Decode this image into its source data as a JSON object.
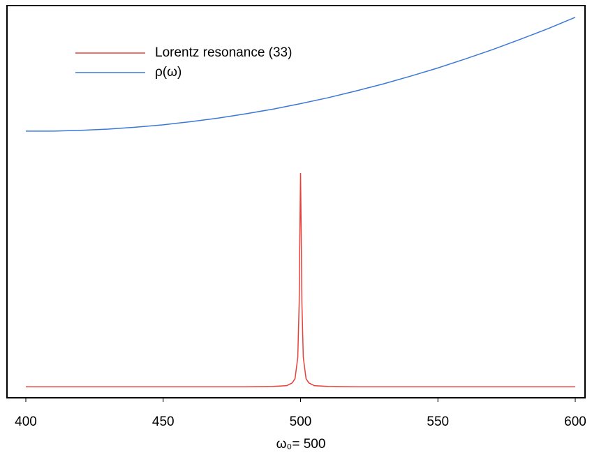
{
  "chart_data": {
    "type": "line",
    "xlabel": "ω₀= 500",
    "xlim": [
      400,
      600
    ],
    "xticks": [
      400,
      450,
      500,
      550,
      600
    ],
    "ylim": [
      0,
      1
    ],
    "legend": "upper left",
    "series": [
      {
        "name": "Lorentz resonance (33)",
        "color": "#e8403a",
        "x": [
          400,
          450,
          480,
          490,
          495,
          497,
          498,
          499,
          499.5,
          499.75,
          500,
          500.25,
          500.5,
          501,
          502,
          503,
          505,
          510,
          520,
          550,
          600
        ],
        "values": [
          0.028,
          0.028,
          0.028,
          0.029,
          0.031,
          0.038,
          0.049,
          0.103,
          0.241,
          0.42,
          0.573,
          0.42,
          0.241,
          0.103,
          0.049,
          0.038,
          0.031,
          0.029,
          0.028,
          0.028,
          0.028
        ]
      },
      {
        "name": "ρ(ω)",
        "color": "#3a78d8",
        "x": [
          400,
          410,
          420,
          430,
          440,
          450,
          460,
          470,
          480,
          490,
          500,
          510,
          520,
          530,
          540,
          550,
          560,
          570,
          580,
          590,
          600
        ],
        "values": [
          0.68,
          0.68,
          0.682,
          0.685,
          0.69,
          0.696,
          0.704,
          0.713,
          0.724,
          0.736,
          0.75,
          0.765,
          0.782,
          0.8,
          0.82,
          0.841,
          0.864,
          0.888,
          0.914,
          0.941,
          0.97
        ]
      }
    ]
  }
}
